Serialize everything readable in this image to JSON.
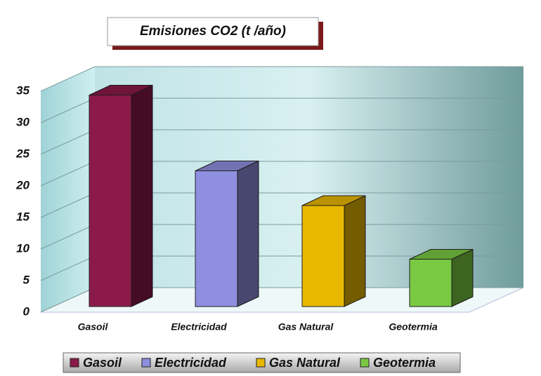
{
  "chart_data": {
    "type": "bar3d",
    "title": "Emisiones CO2 (t /año)",
    "categories": [
      "Gasoil",
      "Electricidad",
      "Gas Natural",
      "Geotermia"
    ],
    "values": [
      33.5,
      21.5,
      16,
      7.5
    ],
    "colors": [
      "#8b1a4a",
      "#8f8fe0",
      "#e8b800",
      "#7ac943"
    ],
    "ylim": [
      0,
      35
    ],
    "yticks": [
      0,
      5,
      10,
      15,
      20,
      25,
      30,
      35
    ],
    "grid": true
  }
}
